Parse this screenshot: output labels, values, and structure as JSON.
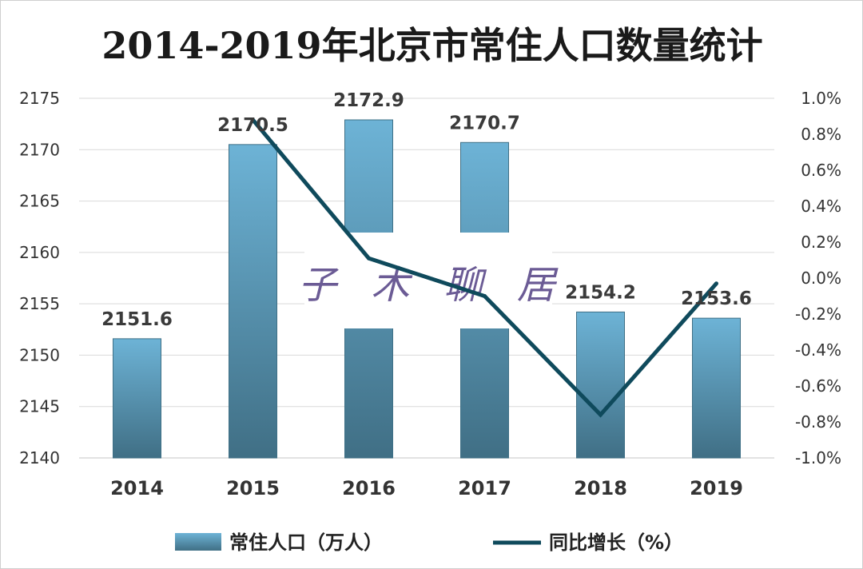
{
  "chart_data": {
    "type": "bar+line",
    "title": "2014-2019年北京市常住人口数量统计",
    "categories": [
      "2014",
      "2015",
      "2016",
      "2017",
      "2018",
      "2019"
    ],
    "series": [
      {
        "name": "常住人口（万人）",
        "type": "bar",
        "axis": "left",
        "values": [
          2151.6,
          2170.5,
          2172.9,
          2170.7,
          2154.2,
          2153.6
        ],
        "data_labels": [
          "2151.6",
          "2170.5",
          "2172.9",
          "2170.7",
          "2154.2",
          "2153.6"
        ]
      },
      {
        "name": "同比增长（%）",
        "type": "line",
        "axis": "right",
        "values": [
          null,
          0.88,
          0.11,
          -0.1,
          -0.76,
          -0.03
        ]
      }
    ],
    "y_left": {
      "ylim": [
        2140,
        2175
      ],
      "ticks": [
        "2175",
        "2170",
        "2165",
        "2160",
        "2155",
        "2150",
        "2145",
        "2140"
      ]
    },
    "y_right": {
      "ylim": [
        -1.0,
        1.0
      ],
      "ticks": [
        "1.0%",
        "0.8%",
        "0.6%",
        "0.4%",
        "0.2%",
        "0.0%",
        "-0.2%",
        "-0.4%",
        "-0.6%",
        "-0.8%",
        "-1.0%"
      ]
    },
    "grid": true,
    "legend_position": "bottom",
    "colors": {
      "bar": "#5fa3c4",
      "bar_dark": "#3f7086",
      "line": "#0f4a5c",
      "grid": "#d9d9d9"
    }
  },
  "watermark": {
    "text": "子 木 聊 居"
  }
}
